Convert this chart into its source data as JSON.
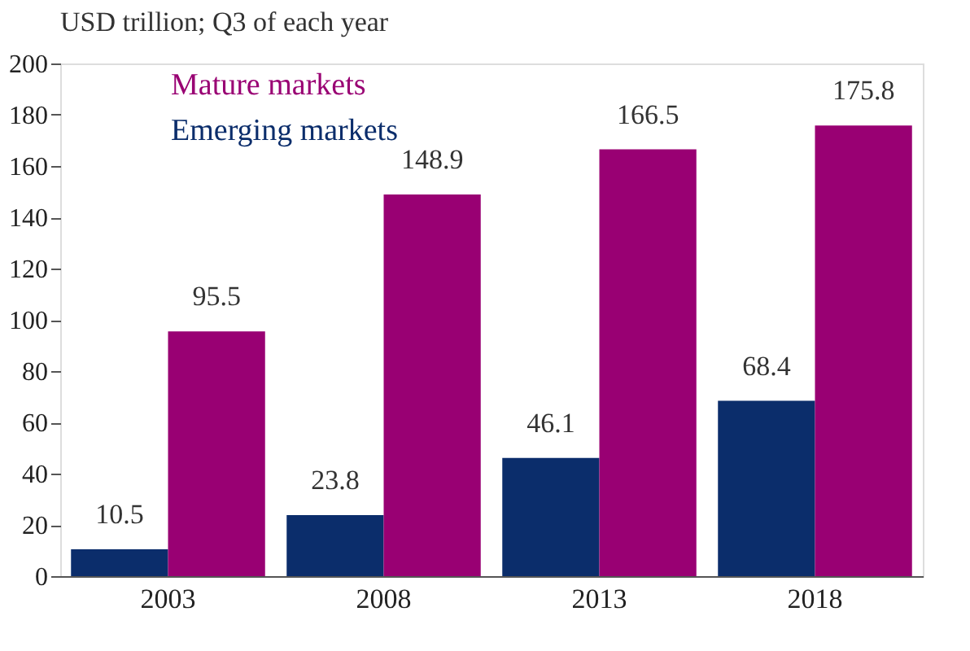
{
  "chart_data": {
    "type": "bar",
    "title": "USD trillion; Q3 of each year",
    "categories": [
      "2003",
      "2008",
      "2013",
      "2018"
    ],
    "series": [
      {
        "name": "Emerging markets",
        "color": "#0b2d6b",
        "values": [
          10.5,
          23.8,
          46.1,
          68.4
        ]
      },
      {
        "name": "Mature markets",
        "color": "#990073",
        "values": [
          95.5,
          148.9,
          166.5,
          175.8
        ]
      }
    ],
    "ylim": [
      0,
      200
    ],
    "yticks": [
      0,
      20,
      40,
      60,
      80,
      100,
      120,
      140,
      160,
      180,
      200
    ],
    "data_labels": true,
    "grid": false,
    "legend": "top left"
  }
}
